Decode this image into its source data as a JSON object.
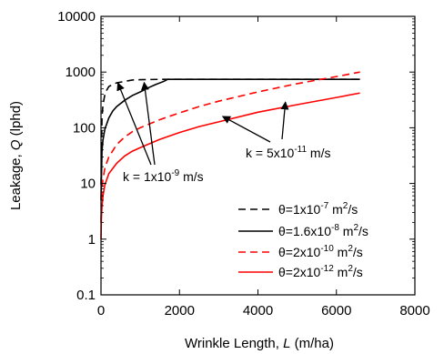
{
  "chart_data": {
    "type": "line",
    "xlabel": {
      "prefix": "Wrinkle Length, ",
      "italic": "L",
      "suffix": " (m/ha)"
    },
    "ylabel": {
      "prefix": "Leakage, ",
      "italic": "Q",
      "suffix": " (lphd)"
    },
    "xlim": [
      0,
      8000
    ],
    "ylim": [
      0.1,
      10000
    ],
    "yscale": "log",
    "grid": false,
    "x_ticks": [
      "0",
      "2000",
      "4000",
      "6000",
      "8000"
    ],
    "y_ticks": [
      "0.1",
      "1",
      "10",
      "100",
      "1000",
      "10000"
    ],
    "legend_position": "lower-right",
    "series": [
      {
        "name": "θ=1x10-7 m2/s",
        "legend": {
          "prefix": "θ=1x10",
          "exp": "-7",
          "mid": " m",
          "exp2": "2",
          "suffix": "/s"
        },
        "color": "#000000",
        "dash": "dashed",
        "x": [
          1,
          25,
          50,
          100,
          150,
          200,
          300,
          400,
          500,
          600,
          700,
          800,
          1000,
          1500,
          2000,
          3000,
          4000,
          5000,
          6000,
          6600
        ],
        "y": [
          9.5,
          152,
          257,
          400,
          480,
          550,
          600,
          640,
          660,
          680,
          700,
          720,
          730,
          740,
          740,
          740,
          740,
          740,
          740,
          740
        ]
      },
      {
        "name": "θ=1.6x10-8 m2/s",
        "legend": {
          "prefix": "θ=1.6x10",
          "exp": "-8",
          "mid": " m",
          "exp2": "2",
          "suffix": "/s"
        },
        "color": "#000000",
        "dash": "solid",
        "x": [
          1,
          25,
          50,
          100,
          200,
          300,
          400,
          600,
          800,
          1000,
          1200,
          1400,
          1600,
          1700,
          2000,
          3000,
          4000,
          5000,
          6000,
          6600
        ],
        "y": [
          5,
          38,
          60,
          95,
          150,
          200,
          240,
          310,
          380,
          440,
          520,
          600,
          680,
          740,
          740,
          740,
          740,
          740,
          740,
          740
        ]
      },
      {
        "name": "θ=2x10-10 m2/s",
        "legend": {
          "prefix": "θ=2x10",
          "exp": "-10",
          "mid": " m",
          "exp2": "2",
          "suffix": "/s"
        },
        "color": "#ff0000",
        "dash": "dashed",
        "x": [
          1,
          10,
          25,
          50,
          100,
          200,
          400,
          600,
          800,
          1000,
          1500,
          2000,
          2500,
          3000,
          4000,
          5000,
          6000,
          6600
        ],
        "y": [
          2,
          4.6,
          8,
          12,
          19,
          30,
          50,
          68,
          85,
          100,
          140,
          185,
          240,
          300,
          440,
          620,
          830,
          1000
        ]
      },
      {
        "name": "θ=2x10-12 m2/s",
        "legend": {
          "prefix": "θ=2x10",
          "exp": "-12",
          "mid": " m",
          "exp2": "2",
          "suffix": "/s"
        },
        "color": "#ff0000",
        "dash": "solid",
        "x": [
          1,
          10,
          25,
          50,
          100,
          200,
          400,
          600,
          800,
          1000,
          1500,
          2000,
          2500,
          3000,
          4000,
          5000,
          6000,
          6600
        ],
        "y": [
          1,
          2.3,
          3.8,
          6,
          9.5,
          15,
          23,
          31,
          38,
          44,
          62,
          82,
          105,
          128,
          190,
          260,
          350,
          420
        ]
      }
    ],
    "annotations": [
      {
        "id": "k1",
        "label": {
          "prefix": "k = 1x10",
          "exp": "-9",
          "suffix": " m/s"
        },
        "arrows_to": [
          [
            430,
            640
          ],
          [
            1100,
            650
          ]
        ]
      },
      {
        "id": "k2",
        "label": {
          "prefix": "k = 5x10",
          "exp": "-11",
          "suffix": " m/s"
        },
        "arrows_to": [
          [
            3100,
            160
          ],
          [
            4700,
            290
          ]
        ]
      }
    ]
  }
}
